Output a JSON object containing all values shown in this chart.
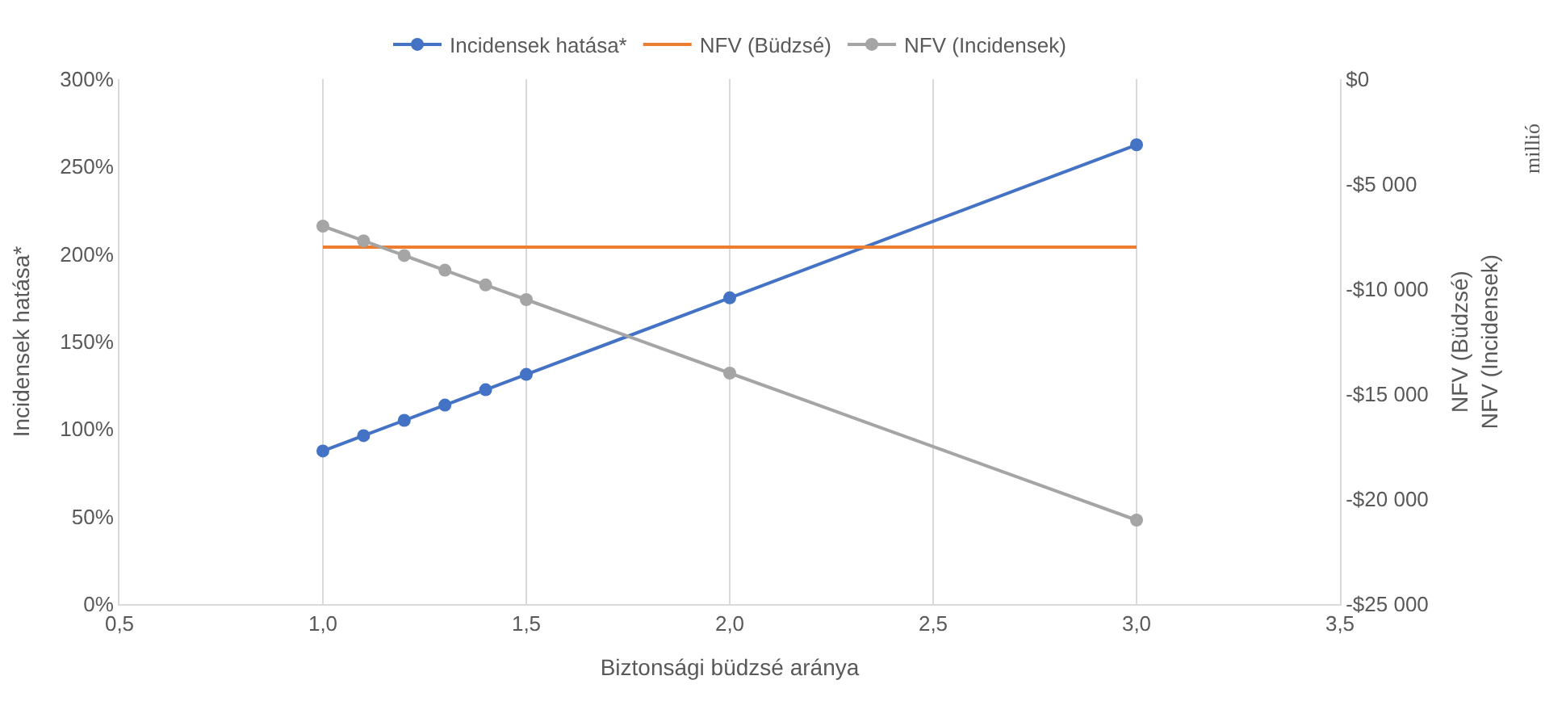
{
  "chart_data": {
    "type": "line",
    "xlabel": "Biztonsági büdzsé aránya",
    "ylabel": "Incidensek hatása*",
    "y2label": "NFV (Büdzsé)\nNFV (Incidensek)",
    "annotations": [
      "millió"
    ],
    "series": [
      {
        "name": "Incidensek hatása*",
        "color": "#4472c4",
        "marker": "circle",
        "x": [
          1.0,
          1.1,
          1.2,
          1.3,
          1.4,
          1.5,
          2.0,
          3.0
        ],
        "values": [
          87.5,
          96.25,
          105,
          113.75,
          122.5,
          131.25,
          175,
          262.5
        ]
      },
      {
        "name": "NFV (Büdzsé)",
        "color": "#ed7d31",
        "marker": "none",
        "axis": "y2",
        "x": [
          1.0,
          3.0
        ],
        "values": [
          -8000,
          -8000
        ]
      },
      {
        "name": "NFV (Incidensek)",
        "color": "#a5a5a5",
        "marker": "circle",
        "axis": "y2",
        "x": [
          1.0,
          1.1,
          1.2,
          1.3,
          1.4,
          1.5,
          2.0,
          3.0
        ],
        "values": [
          -7000,
          -7700,
          -8400,
          -9100,
          -9800,
          -10500,
          -14000,
          -21000
        ]
      }
    ],
    "xlim": [
      0.5,
      3.5
    ],
    "xticks": [
      {
        "value": 0.5,
        "label": "0,5"
      },
      {
        "value": 1.0,
        "label": "1,0"
      },
      {
        "value": 1.5,
        "label": "1,5"
      },
      {
        "value": 2.0,
        "label": "2,0"
      },
      {
        "value": 2.5,
        "label": "2,5"
      },
      {
        "value": 3.0,
        "label": "3,0"
      },
      {
        "value": 3.5,
        "label": "3,5"
      }
    ],
    "ylim": [
      0,
      300
    ],
    "yticks": [
      {
        "value": 0,
        "label": "0%"
      },
      {
        "value": 50,
        "label": "50%"
      },
      {
        "value": 100,
        "label": "100%"
      },
      {
        "value": 150,
        "label": "150%"
      },
      {
        "value": 200,
        "label": "200%"
      },
      {
        "value": 250,
        "label": "250%"
      },
      {
        "value": 300,
        "label": "300%"
      }
    ],
    "y2lim": [
      -25000,
      0
    ],
    "y2ticks": [
      {
        "value": -25000,
        "label": "-$25 000"
      },
      {
        "value": -20000,
        "label": "-$20 000"
      },
      {
        "value": -15000,
        "label": "-$15 000"
      },
      {
        "value": -10000,
        "label": "-$10 000"
      },
      {
        "value": -5000,
        "label": "-$5 000"
      },
      {
        "value": 0,
        "label": "$0"
      }
    ],
    "grid": "x",
    "legend": "top"
  }
}
